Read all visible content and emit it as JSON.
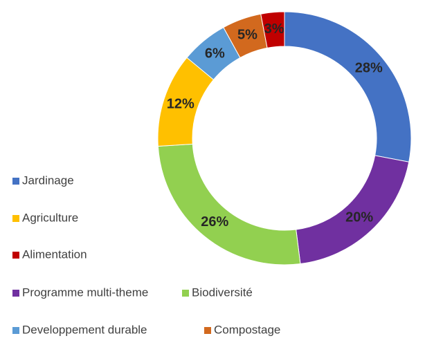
{
  "chart_data": {
    "type": "pie",
    "donut": true,
    "categories": [
      "Jardinage",
      "Programme multi-theme",
      "Biodiversité",
      "Agriculture",
      "Developpement durable",
      "Compostage",
      "Alimentation"
    ],
    "values": [
      28,
      20,
      26,
      12,
      6,
      5,
      3
    ],
    "value_labels": [
      "28%",
      "20%",
      "26%",
      "12%",
      "6%",
      "5%",
      "3%"
    ],
    "colors": [
      "#4472c4",
      "#7030a0",
      "#92d050",
      "#ffc000",
      "#5b9bd5",
      "#d2691e",
      "#c00000"
    ]
  }
}
